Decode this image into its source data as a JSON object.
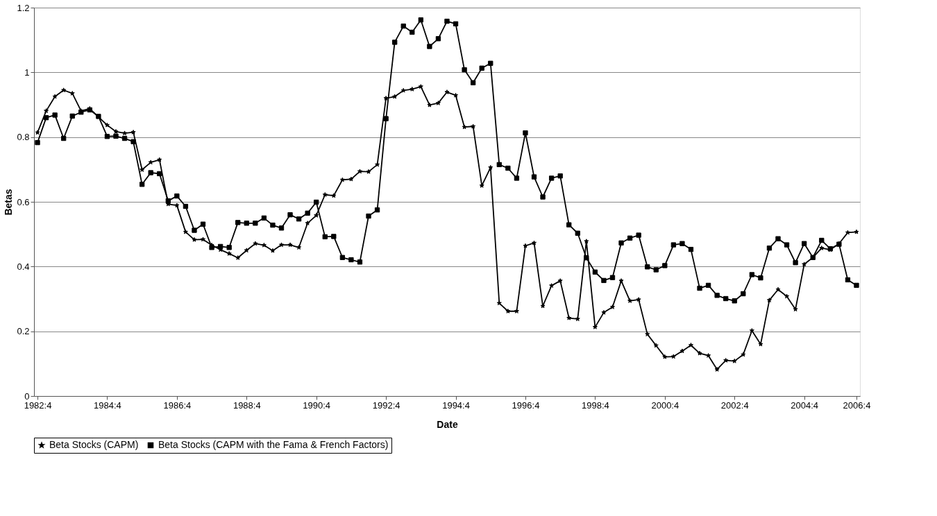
{
  "chart_data": {
    "type": "line",
    "xlabel": "Date",
    "ylabel": "Betas",
    "categories": [
      "1982:4",
      null,
      null,
      null,
      null,
      null,
      null,
      null,
      "1984:4",
      null,
      null,
      null,
      null,
      null,
      null,
      null,
      "1986:4",
      null,
      null,
      null,
      null,
      null,
      null,
      null,
      "1988:4",
      null,
      null,
      null,
      null,
      null,
      null,
      null,
      "1990:4",
      null,
      null,
      null,
      null,
      null,
      null,
      null,
      "1992:4",
      null,
      null,
      null,
      null,
      null,
      null,
      null,
      "1994:4",
      null,
      null,
      null,
      null,
      null,
      null,
      null,
      "1996:4",
      null,
      null,
      null,
      null,
      null,
      null,
      null,
      "1998:4",
      null,
      null,
      null,
      null,
      null,
      null,
      null,
      "2000:4",
      null,
      null,
      null,
      null,
      null,
      null,
      null,
      "2002:4",
      null,
      null,
      null,
      null,
      null,
      null,
      null,
      "2004:4",
      null,
      null,
      null,
      null,
      null,
      "2006:4"
    ],
    "ylim": [
      0,
      1.2
    ],
    "yticks": [
      0,
      0.2,
      0.4,
      0.6,
      0.8,
      1,
      1.2
    ],
    "grid": "y",
    "legend": "bottom",
    "series": [
      {
        "name": "Beta Stocks (CAPM)",
        "color": "#000000",
        "marker": "star",
        "values": [
          0.814,
          0.881,
          0.925,
          0.945,
          0.935,
          0.881,
          0.888,
          0.862,
          0.837,
          0.817,
          0.812,
          0.815,
          0.699,
          0.722,
          0.73,
          0.593,
          0.589,
          0.507,
          0.483,
          0.484,
          0.466,
          0.452,
          0.44,
          0.427,
          0.45,
          0.471,
          0.466,
          0.449,
          0.467,
          0.467,
          0.459,
          0.534,
          0.558,
          0.622,
          0.619,
          0.668,
          0.67,
          0.694,
          0.693,
          0.715,
          0.92,
          0.925,
          0.944,
          0.948,
          0.956,
          0.899,
          0.905,
          0.939,
          0.929,
          0.831,
          0.833,
          0.65,
          0.706,
          0.287,
          0.262,
          0.262,
          0.464,
          0.473,
          0.278,
          0.341,
          0.356,
          0.241,
          0.238,
          0.478,
          0.213,
          0.258,
          0.275,
          0.356,
          0.294,
          0.298,
          0.191,
          0.156,
          0.121,
          0.122,
          0.139,
          0.157,
          0.132,
          0.125,
          0.082,
          0.11,
          0.108,
          0.128,
          0.202,
          0.16,
          0.296,
          0.329,
          0.308,
          0.268,
          0.407,
          0.428,
          0.457,
          0.452,
          0.471,
          0.505,
          0.507
        ]
      },
      {
        "name": "Beta Stocks (CAPM with the Fama & French Factors)",
        "color": "#000000",
        "marker": "square",
        "values": [
          0.783,
          0.86,
          0.868,
          0.796,
          0.865,
          0.877,
          0.884,
          0.864,
          0.802,
          0.803,
          0.796,
          0.786,
          0.654,
          0.69,
          0.687,
          0.603,
          0.618,
          0.586,
          0.512,
          0.531,
          0.459,
          0.462,
          0.459,
          0.536,
          0.534,
          0.534,
          0.55,
          0.528,
          0.519,
          0.56,
          0.547,
          0.565,
          0.599,
          0.492,
          0.493,
          0.428,
          0.421,
          0.414,
          0.556,
          0.575,
          0.857,
          1.093,
          1.143,
          1.124,
          1.162,
          1.08,
          1.104,
          1.158,
          1.15,
          1.008,
          0.968,
          1.013,
          1.028,
          0.715,
          0.704,
          0.673,
          0.813,
          0.677,
          0.615,
          0.673,
          0.68,
          0.529,
          0.503,
          0.427,
          0.383,
          0.357,
          0.366,
          0.473,
          0.488,
          0.497,
          0.399,
          0.39,
          0.403,
          0.467,
          0.471,
          0.453,
          0.333,
          0.342,
          0.311,
          0.301,
          0.294,
          0.316,
          0.375,
          0.365,
          0.457,
          0.486,
          0.467,
          0.412,
          0.471,
          0.428,
          0.481,
          0.455,
          0.469,
          0.359,
          0.342
        ]
      }
    ]
  }
}
